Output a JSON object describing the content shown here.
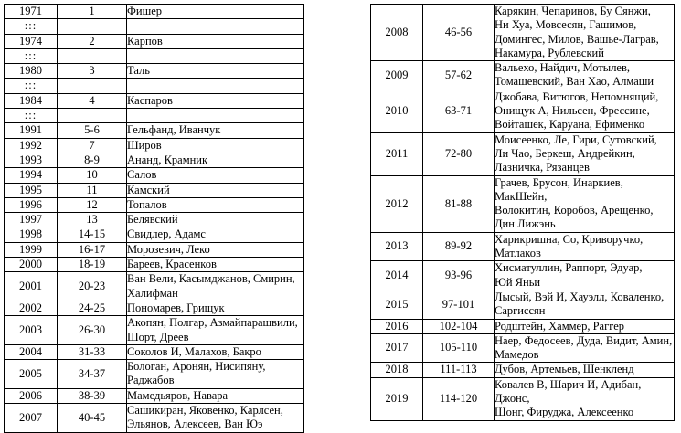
{
  "left_table": {
    "rows": [
      {
        "year": "1971",
        "rank": "1",
        "names": "Фишер"
      },
      {
        "year": ":::",
        "rank": "",
        "names": ""
      },
      {
        "year": "1974",
        "rank": "2",
        "names": "Карпов"
      },
      {
        "year": ":::",
        "rank": "",
        "names": ""
      },
      {
        "year": "1980",
        "rank": "3",
        "names": "Таль"
      },
      {
        "year": ":::",
        "rank": "",
        "names": ""
      },
      {
        "year": "1984",
        "rank": "4",
        "names": "Каспаров"
      },
      {
        "year": ":::",
        "rank": "",
        "names": ""
      },
      {
        "year": "1991",
        "rank": "5-6",
        "names": "Гельфанд, Иванчук"
      },
      {
        "year": "1992",
        "rank": "7",
        "names": "Широв"
      },
      {
        "year": "1993",
        "rank": "8-9",
        "names": "Ананд, Крамник"
      },
      {
        "year": "1994",
        "rank": "10",
        "names": "Салов"
      },
      {
        "year": "1995",
        "rank": "11",
        "names": "Камский"
      },
      {
        "year": "1996",
        "rank": "12",
        "names": "Топалов"
      },
      {
        "year": "1997",
        "rank": "13",
        "names": "Белявский"
      },
      {
        "year": "1998",
        "rank": "14-15",
        "names": "Свидлер, Адамс"
      },
      {
        "year": "1999",
        "rank": "16-17",
        "names": "Морозевич, Леко"
      },
      {
        "year": "2000",
        "rank": "18-19",
        "names": "Бареев, Красенков"
      },
      {
        "year": "2001",
        "rank": "20-23",
        "names": "Ван Вели, Касымджанов, Смирин,\nХалифман"
      },
      {
        "year": "2002",
        "rank": "24-25",
        "names": "Пономарев, Грищук"
      },
      {
        "year": "2003",
        "rank": "26-30",
        "names": "Акопян, Полгар, Азмайпарашвили,\nШорт, Дреев"
      },
      {
        "year": "2004",
        "rank": "31-33",
        "names": "Соколов И, Малахов, Бакро"
      },
      {
        "year": "2005",
        "rank": "34-37",
        "names": "Бологан, Аронян, Нисипяну,\nРаджабов"
      },
      {
        "year": "2006",
        "rank": "38-39",
        "names": "Мамедьяров, Навара"
      },
      {
        "year": "2007",
        "rank": "40-45",
        "names": "Сашикиран, Яковенко, Карлсен,\nЭльянов, Алексеев, Ван Юэ"
      }
    ]
  },
  "right_table": {
    "rows": [
      {
        "year": "2008",
        "rank": "46-56",
        "names": "Карякин, Чепаринов, Бу Сянжи,\nНи Хуа, Мовсесян, Гашимов,\nДомингес, Милов, Вашье-Лаграв,\nНакамура, Рублевский"
      },
      {
        "year": "2009",
        "rank": "57-62",
        "names": "Вальехо, Найдич, Мотылев,\nТомашевский, Ван Хао, Алмаши"
      },
      {
        "year": "2010",
        "rank": "63-71",
        "names": "Джобава, Витюгов, Непомнящий,\nОнищук А, Нильсен, Фрессине,\nВойташек, Каруана, Ефименко"
      },
      {
        "year": "2011",
        "rank": "72-80",
        "names": "Моисеенко, Ле, Гири, Сутовский,\nЛи Чао, Беркеш, Андрейкин,\nЛазничка, Рязанцев"
      },
      {
        "year": "2012",
        "rank": "81-88",
        "names": "Грачев, Брусон, Инаркиев, МакШейн,\nВолокитин, Коробов, Арещенко,\nДин Лижэнь"
      },
      {
        "year": "2013",
        "rank": "89-92",
        "names": "Харикришна, Со, Криворучко,\nМатлаков"
      },
      {
        "year": "2014",
        "rank": "93-96",
        "names": "Хисматуллин, Раппорт, Эдуар,\nЮй Яньи"
      },
      {
        "year": "2015",
        "rank": "97-101",
        "names": "Лысый, Вэй И, Хауэлл, Коваленко,\nСаргиссян"
      },
      {
        "year": "2016",
        "rank": "102-104",
        "names": "Родштейн, Хаммер, Раггер"
      },
      {
        "year": "2017",
        "rank": "105-110",
        "names": "Наер, Федосеев, Дуда, Видит, Амин,\nМамедов"
      },
      {
        "year": "2018",
        "rank": "111-113",
        "names": "Дубов, Артемьев, Шенкленд"
      },
      {
        "year": "2019",
        "rank": "114-120",
        "names": "Ковалев В, Шарич И, Адибан, Джонс,\nШонг, Фируджа, Алексеенко"
      }
    ]
  }
}
